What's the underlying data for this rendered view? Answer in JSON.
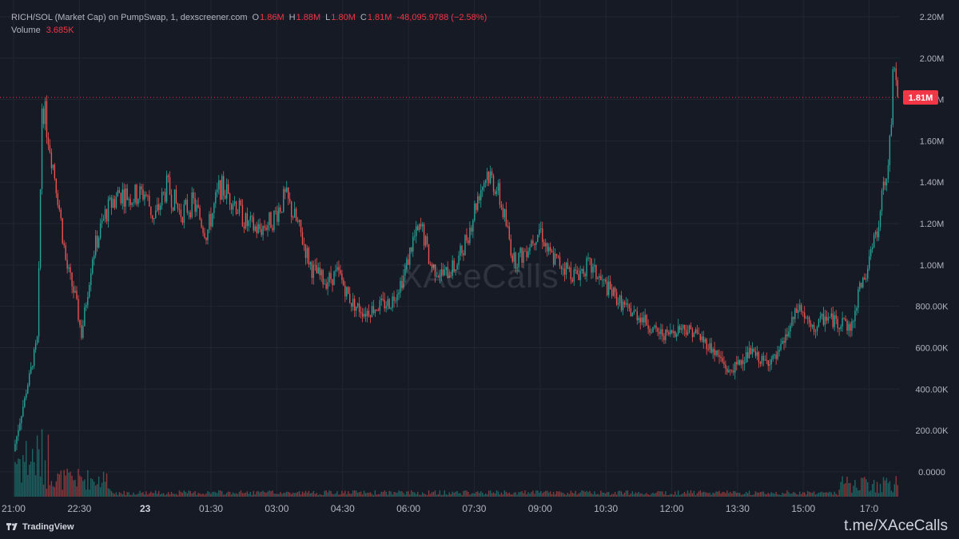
{
  "header": {
    "pair": "RICH/SOL (Market Cap) on PumpSwap, 1, dexscreener.com",
    "o_label": "O",
    "o_value": "1.86M",
    "h_label": "H",
    "h_value": "1.88M",
    "l_label": "L",
    "l_value": "1.80M",
    "c_label": "C",
    "c_value": "1.81M",
    "change": "-48,095.9788 (−2.58%)",
    "volume_label": "Volume",
    "volume_value": "3.685K"
  },
  "watermark": "XAceCalls",
  "footer": {
    "brand": "TradingView",
    "link": "t.me/XAceCalls"
  },
  "colors": {
    "background": "#161a25",
    "grid": "#232632",
    "up": "#26a69a",
    "down": "#ef5350",
    "price_marker": "#f23645"
  },
  "chart_data": {
    "type": "candlestick",
    "yticks": [
      "2.20M",
      "2.00M",
      "1.80M",
      "1.60M",
      "1.40M",
      "1.20M",
      "1.00M",
      "800.00K",
      "600.00K",
      "400.00K",
      "200.00K",
      "0.0000"
    ],
    "ytick_values": [
      2.2,
      2.0,
      1.8,
      1.6,
      1.4,
      1.2,
      1.0,
      0.8,
      0.6,
      0.4,
      0.2,
      0.0
    ],
    "ylim_millions": [
      -0.12,
      2.25
    ],
    "xticks": [
      "21:00",
      "22:30",
      "23",
      "01:30",
      "03:00",
      "04:30",
      "06:00",
      "07:30",
      "09:00",
      "10:30",
      "12:00",
      "13:30",
      "15:00",
      "17:0"
    ],
    "xtick_hours": [
      0,
      1.5,
      3,
      4.5,
      6,
      7.5,
      9,
      10.5,
      12,
      13.5,
      15,
      16.5,
      18,
      19.5
    ],
    "bold_xticks": [
      "23"
    ],
    "x_range_hours": [
      -0.2,
      20.2
    ],
    "current_price": {
      "label": "1.81M",
      "value": 1.81
    },
    "price_path_millions": [
      [
        0.0,
        0.1
      ],
      [
        0.25,
        0.35
      ],
      [
        0.55,
        0.65
      ],
      [
        0.65,
        1.8
      ],
      [
        0.8,
        1.62
      ],
      [
        1.0,
        1.35
      ],
      [
        1.2,
        1.0
      ],
      [
        1.4,
        0.85
      ],
      [
        1.55,
        0.66
      ],
      [
        1.8,
        1.05
      ],
      [
        2.1,
        1.25
      ],
      [
        2.4,
        1.35
      ],
      [
        2.7,
        1.33
      ],
      [
        3.0,
        1.35
      ],
      [
        3.2,
        1.22
      ],
      [
        3.5,
        1.38
      ],
      [
        3.8,
        1.25
      ],
      [
        4.1,
        1.3
      ],
      [
        4.4,
        1.15
      ],
      [
        4.7,
        1.38
      ],
      [
        5.0,
        1.32
      ],
      [
        5.3,
        1.2
      ],
      [
        5.6,
        1.17
      ],
      [
        5.9,
        1.22
      ],
      [
        6.2,
        1.33
      ],
      [
        6.5,
        1.18
      ],
      [
        6.8,
        0.98
      ],
      [
        7.1,
        0.92
      ],
      [
        7.4,
        0.96
      ],
      [
        7.7,
        0.82
      ],
      [
        8.0,
        0.77
      ],
      [
        8.3,
        0.8
      ],
      [
        8.6,
        0.82
      ],
      [
        8.9,
        0.95
      ],
      [
        9.1,
        1.12
      ],
      [
        9.3,
        1.18
      ],
      [
        9.5,
        1.0
      ],
      [
        9.8,
        0.95
      ],
      [
        10.1,
        1.0
      ],
      [
        10.4,
        1.18
      ],
      [
        10.6,
        1.35
      ],
      [
        10.8,
        1.45
      ],
      [
        11.0,
        1.38
      ],
      [
        11.2,
        1.22
      ],
      [
        11.4,
        1.02
      ],
      [
        11.6,
        1.05
      ],
      [
        11.8,
        1.12
      ],
      [
        12.0,
        1.18
      ],
      [
        12.2,
        1.05
      ],
      [
        12.5,
        1.0
      ],
      [
        12.8,
        0.95
      ],
      [
        13.1,
        1.0
      ],
      [
        13.4,
        0.92
      ],
      [
        13.7,
        0.85
      ],
      [
        14.0,
        0.78
      ],
      [
        14.3,
        0.75
      ],
      [
        14.6,
        0.68
      ],
      [
        14.9,
        0.66
      ],
      [
        15.2,
        0.7
      ],
      [
        15.5,
        0.68
      ],
      [
        15.8,
        0.62
      ],
      [
        16.1,
        0.55
      ],
      [
        16.3,
        0.48
      ],
      [
        16.5,
        0.52
      ],
      [
        16.8,
        0.58
      ],
      [
        17.1,
        0.53
      ],
      [
        17.4,
        0.55
      ],
      [
        17.7,
        0.7
      ],
      [
        17.9,
        0.8
      ],
      [
        18.2,
        0.68
      ],
      [
        18.5,
        0.75
      ],
      [
        18.8,
        0.72
      ],
      [
        19.1,
        0.7
      ],
      [
        19.3,
        0.9
      ],
      [
        19.5,
        1.0
      ],
      [
        19.7,
        1.2
      ],
      [
        19.9,
        1.45
      ],
      [
        20.0,
        1.7
      ],
      [
        20.05,
        1.9
      ],
      [
        20.15,
        1.81
      ]
    ]
  }
}
